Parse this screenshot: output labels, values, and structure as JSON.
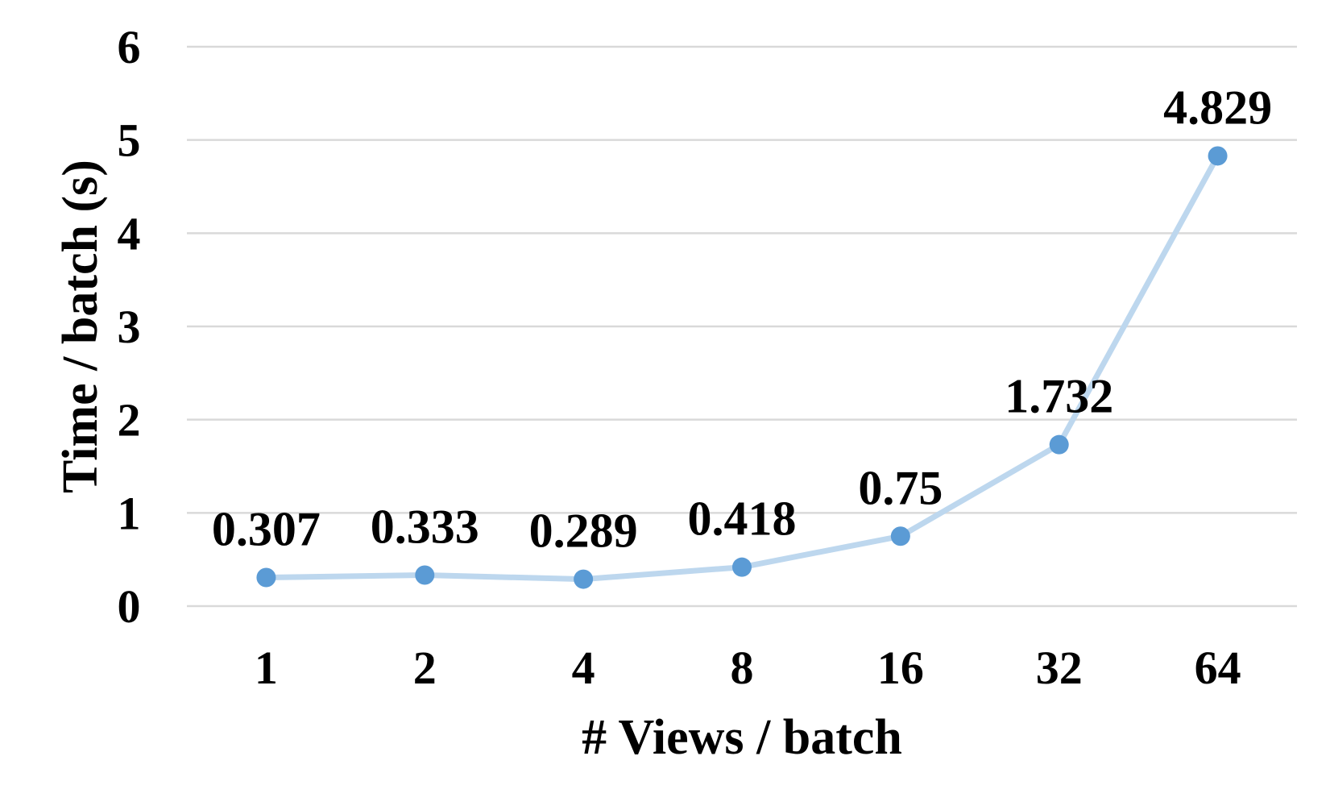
{
  "chart_data": {
    "type": "line",
    "categories": [
      "1",
      "2",
      "4",
      "8",
      "16",
      "32",
      "64"
    ],
    "series": [
      {
        "values": [
          0.307,
          0.333,
          0.289,
          0.418,
          0.75,
          1.732,
          4.829
        ],
        "data_labels": [
          "0.307",
          "0.333",
          "0.289",
          "0.418",
          "0.75",
          "1.732",
          "4.829"
        ]
      }
    ],
    "title": "",
    "xlabel": "# Views / batch",
    "ylabel": "Time / batch (s)",
    "ylim": [
      0,
      6
    ],
    "yticks": [
      "0",
      "1",
      "2",
      "3",
      "4",
      "5",
      "6"
    ],
    "grid": "horizontal",
    "line_color": "#bdd7ee",
    "marker_color": "#5b9bd5",
    "grid_color": "#d9d9d9"
  }
}
